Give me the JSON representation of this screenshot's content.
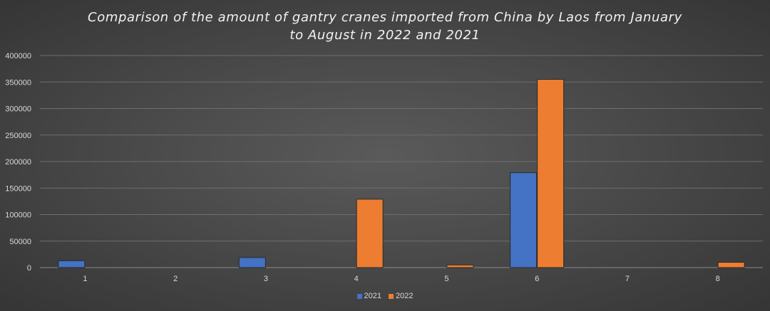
{
  "chart_data": {
    "type": "bar",
    "title": "Comparison of the amount of gantry cranes imported from China by Laos from January to August in 2022 and 2021",
    "title_line1": "Comparison of the amount of gantry cranes imported from China by Laos from January",
    "title_line2": "to August in 2022 and 2021",
    "xlabel": "",
    "ylabel": "",
    "categories": [
      "1",
      "2",
      "3",
      "4",
      "5",
      "6",
      "7",
      "8"
    ],
    "series": [
      {
        "name": "2021",
        "color": "#4472c4",
        "values": [
          13000,
          0,
          19000,
          0,
          0,
          179000,
          0,
          0
        ]
      },
      {
        "name": "2022",
        "color": "#ed7d31",
        "values": [
          0,
          0,
          0,
          129000,
          5000,
          355000,
          0,
          10000
        ]
      }
    ],
    "ylim": [
      0,
      400000
    ],
    "yticks": [
      0,
      50000,
      100000,
      150000,
      200000,
      250000,
      300000,
      350000,
      400000
    ],
    "ytick_labels": [
      "0",
      "50000",
      "100000",
      "150000",
      "200000",
      "250000",
      "300000",
      "350000",
      "400000"
    ],
    "grid": true,
    "legend_position": "bottom"
  }
}
